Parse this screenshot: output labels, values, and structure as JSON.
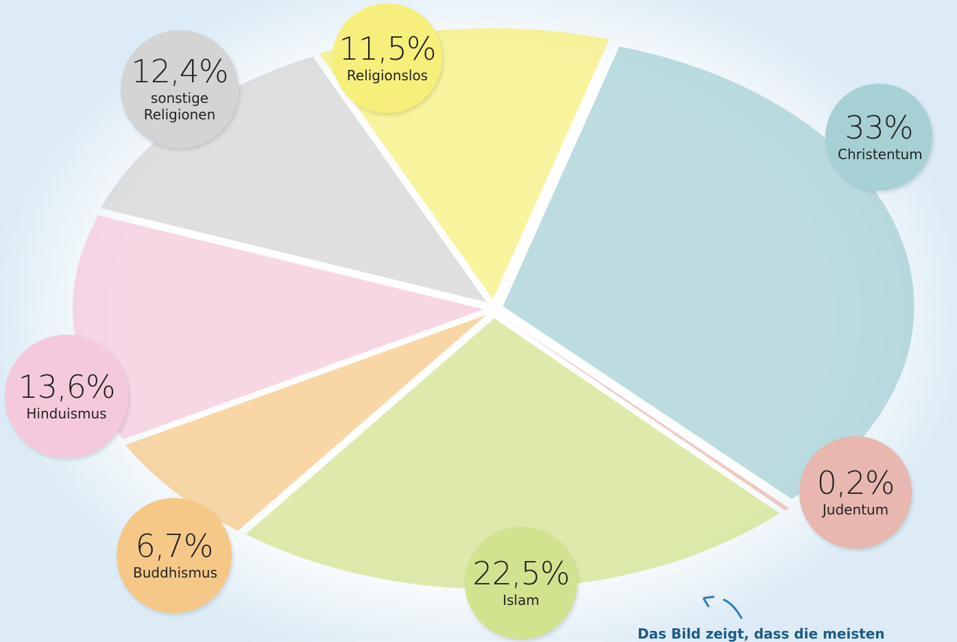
{
  "chart_data": {
    "type": "pie",
    "categories": [
      "Religionslos",
      "Christentum",
      "Judentum",
      "Islam",
      "Buddhismus",
      "Hinduismus",
      "sonstige Religionen"
    ],
    "values": [
      11.5,
      33,
      0.2,
      22.5,
      6.7,
      13.6,
      12.4
    ],
    "value_labels": [
      "11,5%",
      "33%",
      "0,2%",
      "22,5%",
      "6,7%",
      "13,6%",
      "12,4%"
    ],
    "colors": [
      "#f6ef7c",
      "#a6d0d4",
      "#e8b7b0",
      "#d2e38f",
      "#f5c888",
      "#f5c9dc",
      "#d4d4d4"
    ],
    "caption": "Das Bild zeigt, dass die meisten"
  }
}
